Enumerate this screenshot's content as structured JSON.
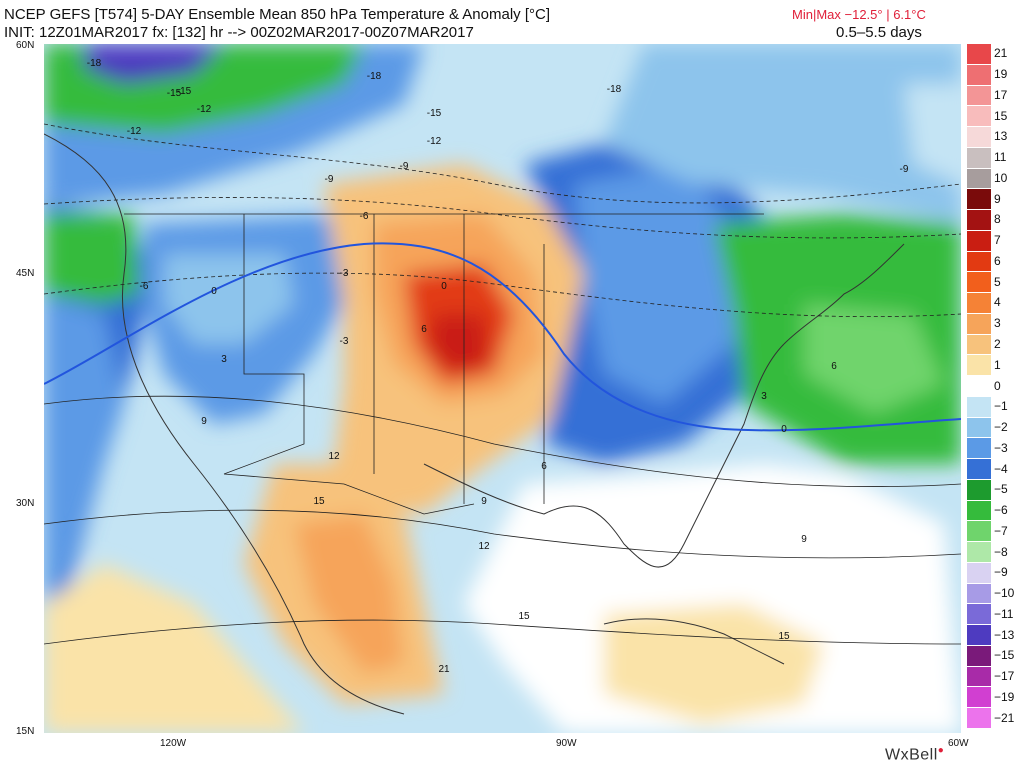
{
  "header": {
    "line1_left": "NCEP GEFS [T574] 5-DAY Ensemble Mean 850 hPa Temperature & Anomaly [°C]",
    "line1_right": "Min|Max −12.5° | 6.1°C",
    "line2_left": "INIT: 12Z01MAR2017 fx: [132] hr --> 00Z02MAR2017-00Z07MAR2017",
    "line2_right": "0.5–5.5 days"
  },
  "axes": {
    "lat_labels": [
      "60N",
      "45N",
      "30N",
      "15N"
    ],
    "lon_labels": [
      "120W",
      "90W",
      "60W"
    ]
  },
  "colorbar": {
    "labels": [
      "21",
      "19",
      "17",
      "15",
      "13",
      "11",
      "10",
      "9",
      "8",
      "7",
      "6",
      "5",
      "4",
      "3",
      "2",
      "1",
      "0",
      "−1",
      "−2",
      "−3",
      "−4",
      "−5",
      "−6",
      "−7",
      "−8",
      "−9",
      "−10",
      "−11",
      "−13",
      "−15",
      "−17",
      "−19",
      "−21"
    ],
    "colors": [
      "#e8474a",
      "#ee6f72",
      "#f39596",
      "#f8bcbc",
      "#f6d9d9",
      "#c9bfbf",
      "#a79d9d",
      "#7a0b0b",
      "#a31212",
      "#c91e12",
      "#e23a12",
      "#f25f1c",
      "#f58236",
      "#f6a45a",
      "#f7c27c",
      "#fae3a8",
      "#ffffff",
      "#c4e4f4",
      "#8dc4ec",
      "#5b9ae6",
      "#3570d6",
      "#1d9b2e",
      "#35bb3c",
      "#6fd46c",
      "#aee8a8",
      "#d9d2f2",
      "#a79be6",
      "#7a6ad8",
      "#4e3bc0",
      "#7a1a7a",
      "#a82ba8",
      "#d13fd1",
      "#ec73ec"
    ]
  },
  "contour_labels": [
    "-18",
    "-18",
    "-18",
    "-15",
    "-15",
    "-15",
    "-12",
    "-12",
    "-12",
    "-9",
    "-9",
    "-9",
    "-6",
    "-6",
    "-3",
    "-3",
    "0",
    "0",
    "0",
    "3",
    "3",
    "6",
    "6",
    "6",
    "9",
    "9",
    "9",
    "12",
    "12",
    "15",
    "15",
    "15",
    "21"
  ],
  "brand": {
    "name": "WxBell"
  }
}
